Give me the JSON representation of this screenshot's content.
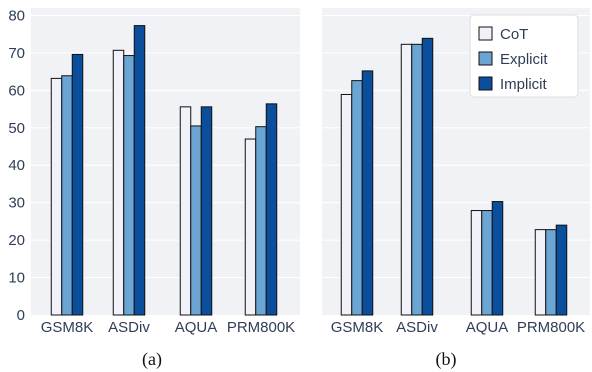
{
  "chart_data": [
    {
      "type": "bar",
      "panel_label": "(a)",
      "categories": [
        "GSM8K",
        "ASDiv",
        "AQUA",
        "PRM800K"
      ],
      "series": [
        {
          "name": "CoT",
          "values": [
            63.2,
            70.7,
            55.6,
            47.0
          ]
        },
        {
          "name": "Explicit",
          "values": [
            63.9,
            69.3,
            50.5,
            50.3
          ]
        },
        {
          "name": "Implicit",
          "values": [
            69.6,
            77.3,
            55.6,
            56.4
          ]
        }
      ],
      "yticks": [
        0,
        10,
        20,
        30,
        40,
        50,
        60,
        70,
        80
      ],
      "ylim": [
        0,
        82
      ],
      "grid": true
    },
    {
      "type": "bar",
      "panel_label": "(b)",
      "categories": [
        "GSM8K",
        "ASDiv",
        "AQUA",
        "PRM800K"
      ],
      "series": [
        {
          "name": "CoT",
          "values": [
            58.9,
            72.3,
            27.9,
            22.8
          ]
        },
        {
          "name": "Explicit",
          "values": [
            62.6,
            72.3,
            27.9,
            22.8
          ]
        },
        {
          "name": "Implicit",
          "values": [
            65.2,
            73.9,
            30.3,
            24.0
          ]
        }
      ],
      "ylim": [
        0,
        82
      ],
      "grid": true,
      "legend": {
        "position": "top-right",
        "entries": [
          "CoT",
          "Explicit",
          "Implicit"
        ]
      }
    }
  ],
  "colors": {
    "CoT": "#f1f1fa",
    "Explicit": "#6aa5d3",
    "Implicit": "#0b4f9c",
    "bar_edge": "#111111",
    "plot_bg": "#f1f2f6",
    "grid": "#ffffff",
    "text": "#2f3e55"
  }
}
